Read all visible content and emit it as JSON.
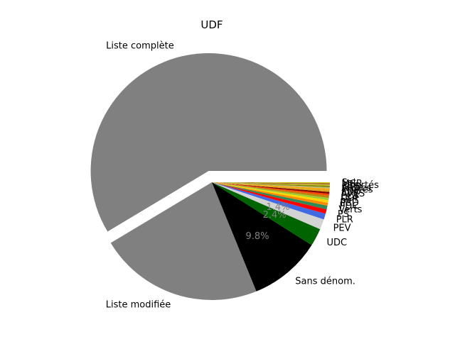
{
  "chart_data": {
    "type": "pie",
    "title": "UDF",
    "start_angle_deg": 0,
    "direction": "counterclockwise",
    "slices": [
      {
        "label": "Liste complète",
        "value": 58.0,
        "pct_label": "",
        "color": "#808080",
        "explode": true
      },
      {
        "label": "Liste modifiée",
        "value": 22.3,
        "pct_label": "",
        "color": "#808080",
        "explode": false
      },
      {
        "label": "Sans dénom.",
        "value": 9.8,
        "pct_label": "9.8%",
        "color": "#000000",
        "explode": false
      },
      {
        "label": "UDC",
        "value": 2.4,
        "pct_label": "2.4%",
        "color": "#006400",
        "explode": false
      },
      {
        "label": "PEV",
        "value": 1.4,
        "pct_label": "1.4%",
        "color": "#d3d3d3",
        "explode": false
      },
      {
        "label": "PLR",
        "value": 0.8,
        "pct_label": "",
        "color": "#4169e1",
        "explode": false
      },
      {
        "label": "PS",
        "value": 0.6,
        "pct_label": "",
        "color": "#ff0000",
        "explode": false
      },
      {
        "label": "Verts",
        "value": 0.5,
        "pct_label": "",
        "color": "#2e8b57",
        "explode": false
      },
      {
        "label": "PDC",
        "value": 0.4,
        "pct_label": "",
        "color": "#ff8c00",
        "explode": false
      },
      {
        "label": "PBD",
        "value": 0.35,
        "pct_label": "",
        "color": "#ffd700",
        "explode": false
      },
      {
        "label": "pvl",
        "value": 0.3,
        "pct_label": "",
        "color": "#9acd32",
        "explode": false
      },
      {
        "label": "UDF",
        "value": 0.3,
        "pct_label": "",
        "color": "#b8860b",
        "explode": false
      },
      {
        "label": "PCS",
        "value": 0.25,
        "pct_label": "",
        "color": "#ff4500",
        "explode": false
      },
      {
        "label": "AVES",
        "value": 0.25,
        "pct_label": "",
        "color": "#800000",
        "explode": false
      },
      {
        "label": "EDU",
        "value": 0.25,
        "pct_label": "",
        "color": "#daa520",
        "explode": false
      },
      {
        "label": "Pirates",
        "value": 0.2,
        "pct_label": "",
        "color": "#ffa500",
        "explode": false
      },
      {
        "label": "Autres",
        "value": 0.2,
        "pct_label": "",
        "color": "#bdb76b",
        "explode": false
      },
      {
        "label": "GTS",
        "value": 0.2,
        "pct_label": "",
        "color": "#808000",
        "explode": false
      },
      {
        "label": "Libertés",
        "value": 0.15,
        "pct_label": "",
        "color": "#cccc33",
        "explode": false
      },
      {
        "label": "MCR",
        "value": 0.15,
        "pct_label": "",
        "color": "#a0522d",
        "explode": false
      },
      {
        "label": "Sol",
        "value": 0.15,
        "pct_label": "",
        "color": "#c0c000",
        "explode": false
      }
    ]
  }
}
